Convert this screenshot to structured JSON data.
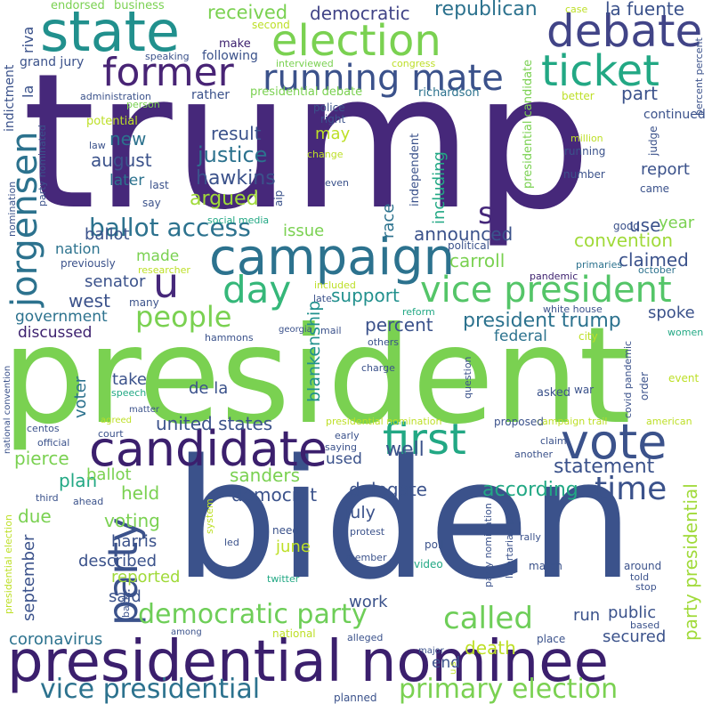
{
  "words": [
    {
      "text": "trump",
      "color": "#46287a"
    },
    {
      "text": "president",
      "color": "#7ad151"
    },
    {
      "text": "biden",
      "color": "#3b528b"
    },
    {
      "text": "presidential nominee",
      "color": "#3b1f6d"
    },
    {
      "text": "campaign",
      "color": "#2c728e"
    },
    {
      "text": "state",
      "color": "#21908d"
    },
    {
      "text": "election",
      "color": "#7ad151"
    },
    {
      "text": "debate",
      "color": "#414487"
    },
    {
      "text": "ticket",
      "color": "#22a884"
    },
    {
      "text": "former",
      "color": "#482475"
    },
    {
      "text": "running mate",
      "color": "#3b528b"
    },
    {
      "text": "candidate",
      "color": "#3b1f6d"
    },
    {
      "text": "vote",
      "color": "#3b528b"
    },
    {
      "text": "first",
      "color": "#22a884"
    },
    {
      "text": "party",
      "color": "#3b528b"
    },
    {
      "text": "jorgensen",
      "color": "#2c728e"
    },
    {
      "text": "day",
      "color": "#35b779"
    },
    {
      "text": "u",
      "color": "#46287a"
    },
    {
      "text": "vice president",
      "color": "#54c568"
    },
    {
      "text": "democratic party",
      "color": "#6ece58"
    },
    {
      "text": "called",
      "color": "#6ece58"
    },
    {
      "text": "time",
      "color": "#3b528b"
    },
    {
      "text": "vice presidential",
      "color": "#2c728e"
    },
    {
      "text": "primary election",
      "color": "#7ad151"
    },
    {
      "text": "people",
      "color": "#7ad151"
    },
    {
      "text": "ballot access",
      "color": "#2c728e"
    },
    {
      "text": "s",
      "color": "#46287a"
    },
    {
      "text": "republican",
      "color": "#2c728e"
    },
    {
      "text": "democratic",
      "color": "#414487"
    },
    {
      "text": "received",
      "color": "#7ad151"
    },
    {
      "text": "la fuente",
      "color": "#3b528b"
    },
    {
      "text": "new",
      "color": "#2c728e"
    },
    {
      "text": "result",
      "color": "#3b528b"
    },
    {
      "text": "hawkins",
      "color": "#3b528b"
    },
    {
      "text": "justice",
      "color": "#2c728e"
    },
    {
      "text": "august",
      "color": "#3b528b"
    },
    {
      "text": "later",
      "color": "#2c728e"
    },
    {
      "text": "argued",
      "color": "#a0da39"
    },
    {
      "text": "ballot",
      "color": "#3b528b"
    },
    {
      "text": "nation",
      "color": "#2c728e"
    },
    {
      "text": "made",
      "color": "#7ad151"
    },
    {
      "text": "senator",
      "color": "#3b528b"
    },
    {
      "text": "west",
      "color": "#3b528b"
    },
    {
      "text": "government",
      "color": "#2c728e"
    },
    {
      "text": "discussed",
      "color": "#3b1f6d"
    },
    {
      "text": "support",
      "color": "#21908d"
    },
    {
      "text": "percent",
      "color": "#3b528b"
    },
    {
      "text": "president trump",
      "color": "#2c728e"
    },
    {
      "text": "announced",
      "color": "#3b528b"
    },
    {
      "text": "carroll",
      "color": "#7ad151"
    },
    {
      "text": "issue",
      "color": "#7ad151"
    },
    {
      "text": "race",
      "color": "#2c728e"
    },
    {
      "text": "blankenship",
      "color": "#21908d"
    },
    {
      "text": "including",
      "color": "#22a884"
    },
    {
      "text": "may",
      "color": "#bddf26"
    },
    {
      "text": "report",
      "color": "#3b528b"
    },
    {
      "text": "part",
      "color": "#3b528b"
    },
    {
      "text": "year",
      "color": "#7ad151"
    },
    {
      "text": "use",
      "color": "#3b528b"
    },
    {
      "text": "convention",
      "color": "#a0da39"
    },
    {
      "text": "claimed",
      "color": "#3b528b"
    },
    {
      "text": "spoke",
      "color": "#3b528b"
    },
    {
      "text": "federal",
      "color": "#2c728e"
    },
    {
      "text": "take",
      "color": "#3b528b"
    },
    {
      "text": "de la",
      "color": "#3b528b"
    },
    {
      "text": "united states",
      "color": "#3b528b"
    },
    {
      "text": "voter",
      "color": "#2c728e"
    },
    {
      "text": "plan",
      "color": "#22a884"
    },
    {
      "text": "pierce",
      "color": "#7ad151"
    },
    {
      "text": "ballot",
      "color": "#7ad151"
    },
    {
      "text": "held",
      "color": "#7ad151"
    },
    {
      "text": "sanders",
      "color": "#7ad151"
    },
    {
      "text": "democrat",
      "color": "#3b528b"
    },
    {
      "text": "statement",
      "color": "#3b528b"
    },
    {
      "text": "delegate",
      "color": "#3b528b"
    },
    {
      "text": "well",
      "color": "#3b528b"
    },
    {
      "text": "used",
      "color": "#3b528b"
    },
    {
      "text": "according",
      "color": "#22a884"
    },
    {
      "text": "voting",
      "color": "#7ad151"
    },
    {
      "text": "due",
      "color": "#7ad151"
    },
    {
      "text": "harris",
      "color": "#3b528b"
    },
    {
      "text": "described",
      "color": "#3b528b"
    },
    {
      "text": "reported",
      "color": "#a0da39"
    },
    {
      "text": "said",
      "color": "#3b528b"
    },
    {
      "text": "september",
      "color": "#3b528b"
    },
    {
      "text": "june",
      "color": "#bddf26"
    },
    {
      "text": "july",
      "color": "#3b528b"
    },
    {
      "text": "work",
      "color": "#3b528b"
    },
    {
      "text": "run",
      "color": "#3b528b"
    },
    {
      "text": "public",
      "color": "#3b528b"
    },
    {
      "text": "secured",
      "color": "#3b528b"
    },
    {
      "text": "death",
      "color": "#bddf26"
    },
    {
      "text": "end",
      "color": "#3b528b"
    },
    {
      "text": "coronavirus",
      "color": "#2c728e"
    },
    {
      "text": "party presidential",
      "color": "#a0da39"
    },
    {
      "text": "endorsed",
      "color": "#7ad151"
    },
    {
      "text": "business",
      "color": "#7ad151"
    },
    {
      "text": "riva",
      "color": "#3b528b"
    },
    {
      "text": "la",
      "color": "#3b528b"
    },
    {
      "text": "make",
      "color": "#3b1f6d"
    },
    {
      "text": "following",
      "color": "#3b528b"
    },
    {
      "text": "speaking",
      "color": "#3b528b"
    },
    {
      "text": "grand jury",
      "color": "#3b528b"
    },
    {
      "text": "indictment",
      "color": "#3b528b"
    },
    {
      "text": "second",
      "color": "#bddf26"
    },
    {
      "text": "interviewed",
      "color": "#7ad151"
    },
    {
      "text": "congress",
      "color": "#bddf26"
    },
    {
      "text": "case",
      "color": "#bddf26"
    },
    {
      "text": "administration",
      "color": "#3b528b"
    },
    {
      "text": "rather",
      "color": "#3b528b"
    },
    {
      "text": "presidential debate",
      "color": "#7ad151"
    },
    {
      "text": "richardson",
      "color": "#2c728e"
    },
    {
      "text": "police",
      "color": "#3b528b"
    },
    {
      "text": "right",
      "color": "#3b528b"
    },
    {
      "text": "person",
      "color": "#7ad151"
    },
    {
      "text": "potential",
      "color": "#bddf26"
    },
    {
      "text": "law",
      "color": "#3b528b"
    },
    {
      "text": "presidential candidate",
      "color": "#7ad151"
    },
    {
      "text": "better",
      "color": "#bddf26"
    },
    {
      "text": "percent percent",
      "color": "#3b528b"
    },
    {
      "text": "million",
      "color": "#bddf26"
    },
    {
      "text": "continued",
      "color": "#3b528b"
    },
    {
      "text": "running",
      "color": "#3b528b"
    },
    {
      "text": "judge",
      "color": "#3b528b"
    },
    {
      "text": "number",
      "color": "#3b528b"
    },
    {
      "text": "came",
      "color": "#3b528b"
    },
    {
      "text": "independent",
      "color": "#3b528b"
    },
    {
      "text": "change",
      "color": "#bddf26"
    },
    {
      "text": "even",
      "color": "#3b528b"
    },
    {
      "text": "last",
      "color": "#3b528b"
    },
    {
      "text": "say",
      "color": "#3b528b"
    },
    {
      "text": "aip",
      "color": "#3b528b"
    },
    {
      "text": "social media",
      "color": "#22a884"
    },
    {
      "text": "good",
      "color": "#3b528b"
    },
    {
      "text": "nomination",
      "color": "#3b528b"
    },
    {
      "text": "party nominated",
      "color": "#3b528b"
    },
    {
      "text": "political",
      "color": "#3b528b"
    },
    {
      "text": "primaries",
      "color": "#2c728e"
    },
    {
      "text": "october",
      "color": "#2c728e"
    },
    {
      "text": "previously",
      "color": "#3b528b"
    },
    {
      "text": "researcher",
      "color": "#bddf26"
    },
    {
      "text": "pandemic",
      "color": "#3b1f6d"
    },
    {
      "text": "included",
      "color": "#bddf26"
    },
    {
      "text": "late",
      "color": "#3b528b"
    },
    {
      "text": "many",
      "color": "#3b528b"
    },
    {
      "text": "reform",
      "color": "#22a884"
    },
    {
      "text": "white house",
      "color": "#3b528b"
    },
    {
      "text": "mail",
      "color": "#3b528b"
    },
    {
      "text": "georgia",
      "color": "#3b528b"
    },
    {
      "text": "city",
      "color": "#bddf26"
    },
    {
      "text": "women",
      "color": "#22a884"
    },
    {
      "text": "hammons",
      "color": "#3b528b"
    },
    {
      "text": "others",
      "color": "#3b528b"
    },
    {
      "text": "charge",
      "color": "#3b528b"
    },
    {
      "text": "question",
      "color": "#3b528b"
    },
    {
      "text": "event",
      "color": "#bddf26"
    },
    {
      "text": "war",
      "color": "#3b528b"
    },
    {
      "text": "order",
      "color": "#3b528b"
    },
    {
      "text": "asked",
      "color": "#3b528b"
    },
    {
      "text": "speech",
      "color": "#22a884"
    },
    {
      "text": "matter",
      "color": "#3b528b"
    },
    {
      "text": "covid pandemic",
      "color": "#3b528b"
    },
    {
      "text": "agreed",
      "color": "#bddf26"
    },
    {
      "text": "presidential nomination",
      "color": "#bddf26"
    },
    {
      "text": "campaign trail",
      "color": "#bddf26"
    },
    {
      "text": "american",
      "color": "#bddf26"
    },
    {
      "text": "court",
      "color": "#3b528b"
    },
    {
      "text": "centos",
      "color": "#3b528b"
    },
    {
      "text": "saying",
      "color": "#3b528b"
    },
    {
      "text": "early",
      "color": "#3b528b"
    },
    {
      "text": "official",
      "color": "#3b528b"
    },
    {
      "text": "proposed",
      "color": "#3b528b"
    },
    {
      "text": "claim",
      "color": "#3b528b"
    },
    {
      "text": "another",
      "color": "#3b528b"
    },
    {
      "text": "national convention",
      "color": "#3b528b"
    },
    {
      "text": "presidential election",
      "color": "#bddf26"
    },
    {
      "text": "third",
      "color": "#3b528b"
    },
    {
      "text": "ahead",
      "color": "#3b528b"
    },
    {
      "text": "need",
      "color": "#3b528b"
    },
    {
      "text": "system",
      "color": "#bddf26"
    },
    {
      "text": "led",
      "color": "#3b528b"
    },
    {
      "text": "protest",
      "color": "#3b528b"
    },
    {
      "text": "poll",
      "color": "#3b528b"
    },
    {
      "text": "party nomination",
      "color": "#3b528b"
    },
    {
      "text": "libertarian party",
      "color": "#3b528b"
    },
    {
      "text": "rally",
      "color": "#3b528b"
    },
    {
      "text": "video",
      "color": "#22a884"
    },
    {
      "text": "march",
      "color": "#3b528b"
    },
    {
      "text": "around",
      "color": "#3b528b"
    },
    {
      "text": "told",
      "color": "#3b528b"
    },
    {
      "text": "stop",
      "color": "#3b528b"
    },
    {
      "text": "member",
      "color": "#3b528b"
    },
    {
      "text": "twitter",
      "color": "#22a884"
    },
    {
      "text": "back",
      "color": "#3b528b"
    },
    {
      "text": "among",
      "color": "#3b528b"
    },
    {
      "text": "national",
      "color": "#bddf26"
    },
    {
      "text": "alleged",
      "color": "#3b528b"
    },
    {
      "text": "major",
      "color": "#3b528b"
    },
    {
      "text": "place",
      "color": "#3b528b"
    },
    {
      "text": "based",
      "color": "#3b528b"
    },
    {
      "text": "planned",
      "color": "#3b528b"
    },
    {
      "text": "u s",
      "color": "#bddf26"
    }
  ]
}
